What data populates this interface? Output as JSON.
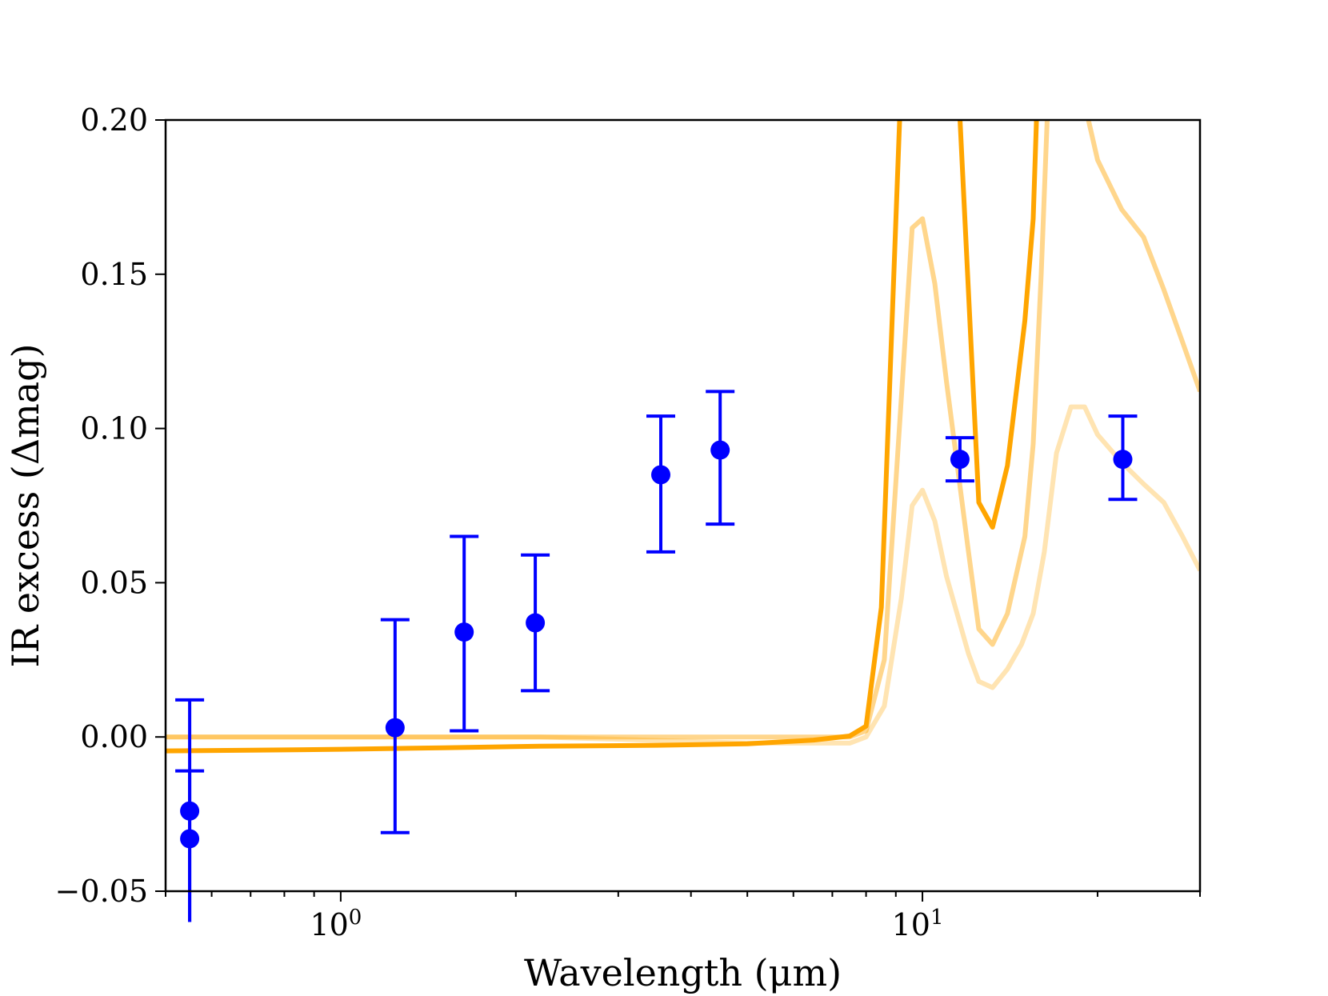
{
  "chart_data": {
    "type": "line",
    "xlabel": "Wavelength (μm)",
    "ylabel": "IR excess (Δmag)",
    "xscale": "log",
    "xlim": [
      0.5,
      30
    ],
    "ylim": [
      -0.05,
      0.2
    ],
    "grid": false,
    "legend": "none",
    "x_ticks": [
      {
        "value": 1,
        "label": "10",
        "exp": "0"
      },
      {
        "value": 10,
        "label": "10",
        "exp": "1"
      }
    ],
    "y_ticks": [
      {
        "value": -0.05,
        "label": "−0.05"
      },
      {
        "value": 0.0,
        "label": "0.00"
      },
      {
        "value": 0.05,
        "label": "0.05"
      },
      {
        "value": 0.1,
        "label": "0.10"
      },
      {
        "value": 0.15,
        "label": "0.15"
      },
      {
        "value": 0.2,
        "label": "0.20"
      }
    ],
    "observations": {
      "color": "#0000ff",
      "points": [
        {
          "x": 0.55,
          "y": -0.024,
          "lo": -0.06,
          "hi": 0.012
        },
        {
          "x": 0.55,
          "y": -0.033,
          "lo": -0.06,
          "hi": -0.011
        },
        {
          "x": 1.24,
          "y": 0.003,
          "lo": -0.031,
          "hi": 0.038
        },
        {
          "x": 1.63,
          "y": 0.034,
          "lo": 0.002,
          "hi": 0.065
        },
        {
          "x": 2.16,
          "y": 0.037,
          "lo": 0.015,
          "hi": 0.059
        },
        {
          "x": 3.55,
          "y": 0.085,
          "lo": 0.06,
          "hi": 0.104
        },
        {
          "x": 4.49,
          "y": 0.093,
          "lo": 0.069,
          "hi": 0.112
        },
        {
          "x": 11.6,
          "y": 0.09,
          "lo": 0.083,
          "hi": 0.097
        },
        {
          "x": 22.1,
          "y": 0.09,
          "lo": 0.077,
          "hi": 0.104
        }
      ]
    },
    "series": [
      {
        "color": "#ffa500",
        "opacity": 1.0,
        "x": [
          0.5,
          0.7,
          1.0,
          1.5,
          2.2,
          3.5,
          5.0,
          6.5,
          7.5,
          8.0,
          8.5,
          9.2,
          11.5,
          12.5,
          13.2,
          14.0,
          15.0,
          15.5,
          15.8
        ],
        "y": [
          -0.0045,
          -0.0043,
          -0.004,
          -0.0035,
          -0.003,
          -0.0027,
          -0.0022,
          -0.001,
          0.0003,
          0.0035,
          0.042,
          0.215,
          0.215,
          0.076,
          0.068,
          0.088,
          0.135,
          0.168,
          0.215
        ]
      },
      {
        "color": "#ffa500",
        "opacity": 0.45,
        "x": [
          0.5,
          1.0,
          2.2,
          5.0,
          6.5,
          7.5,
          8.0,
          8.6,
          9.2,
          9.6,
          10.0,
          10.5,
          11.0,
          12.0,
          12.5,
          13.2,
          14.0,
          15.0,
          15.5,
          16.0,
          16.5,
          17.5,
          18.5,
          20.0,
          22.0,
          24.0,
          26.0,
          28.0,
          30.0
        ],
        "y": [
          0.0,
          0.0,
          0.0,
          0.0,
          0.0,
          0.0,
          0.002,
          0.025,
          0.11,
          0.165,
          0.168,
          0.147,
          0.115,
          0.06,
          0.035,
          0.03,
          0.04,
          0.065,
          0.095,
          0.15,
          0.215,
          0.215,
          0.215,
          0.187,
          0.171,
          0.162,
          0.145,
          0.128,
          0.112
        ]
      },
      {
        "color": "#ffa500",
        "opacity": 0.3,
        "x": [
          0.5,
          1.0,
          2.2,
          5.0,
          6.5,
          7.5,
          8.0,
          8.6,
          9.2,
          9.6,
          10.0,
          10.5,
          11.0,
          12.0,
          12.5,
          13.2,
          14.0,
          14.8,
          15.5,
          16.2,
          17.0,
          18.0,
          19.0,
          20.0,
          22.0,
          24.0,
          26.0,
          28.0,
          30.0
        ],
        "y": [
          0.0,
          0.0,
          0.0,
          -0.002,
          -0.002,
          -0.002,
          0.0,
          0.01,
          0.045,
          0.075,
          0.08,
          0.07,
          0.052,
          0.027,
          0.018,
          0.016,
          0.022,
          0.03,
          0.04,
          0.06,
          0.092,
          0.107,
          0.107,
          0.098,
          0.089,
          0.082,
          0.076,
          0.065,
          0.054
        ]
      }
    ]
  }
}
